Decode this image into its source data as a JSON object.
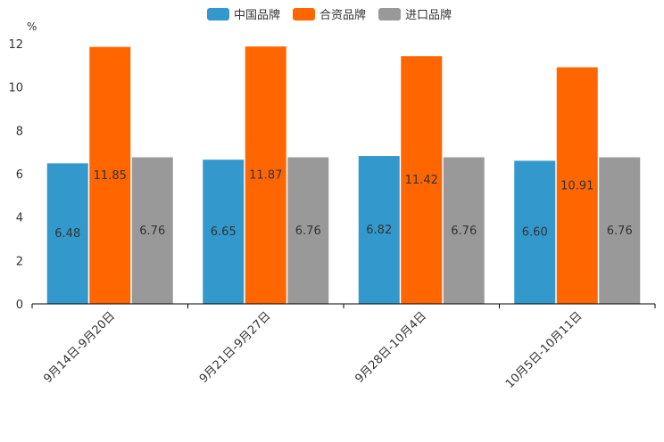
{
  "chart_data": {
    "type": "bar",
    "unit": "%",
    "categories": [
      "9月14日-9月20日",
      "9月21日-9月27日",
      "9月28日-10月4日",
      "10月5日-10月11日"
    ],
    "series": [
      {
        "name": "中国品牌",
        "color": "#3399cc",
        "values": [
          6.48,
          6.65,
          6.82,
          6.6
        ]
      },
      {
        "name": "合资品牌",
        "color": "#ff6600",
        "values": [
          11.85,
          11.87,
          11.42,
          10.91
        ]
      },
      {
        "name": "进口品牌",
        "color": "#999999",
        "values": [
          6.76,
          6.76,
          6.76,
          6.76
        ]
      }
    ],
    "ylim": [
      0,
      12
    ],
    "yticks": [
      0,
      2,
      4,
      6,
      8,
      10,
      12
    ],
    "legend_position": "top-center",
    "grid": false
  }
}
